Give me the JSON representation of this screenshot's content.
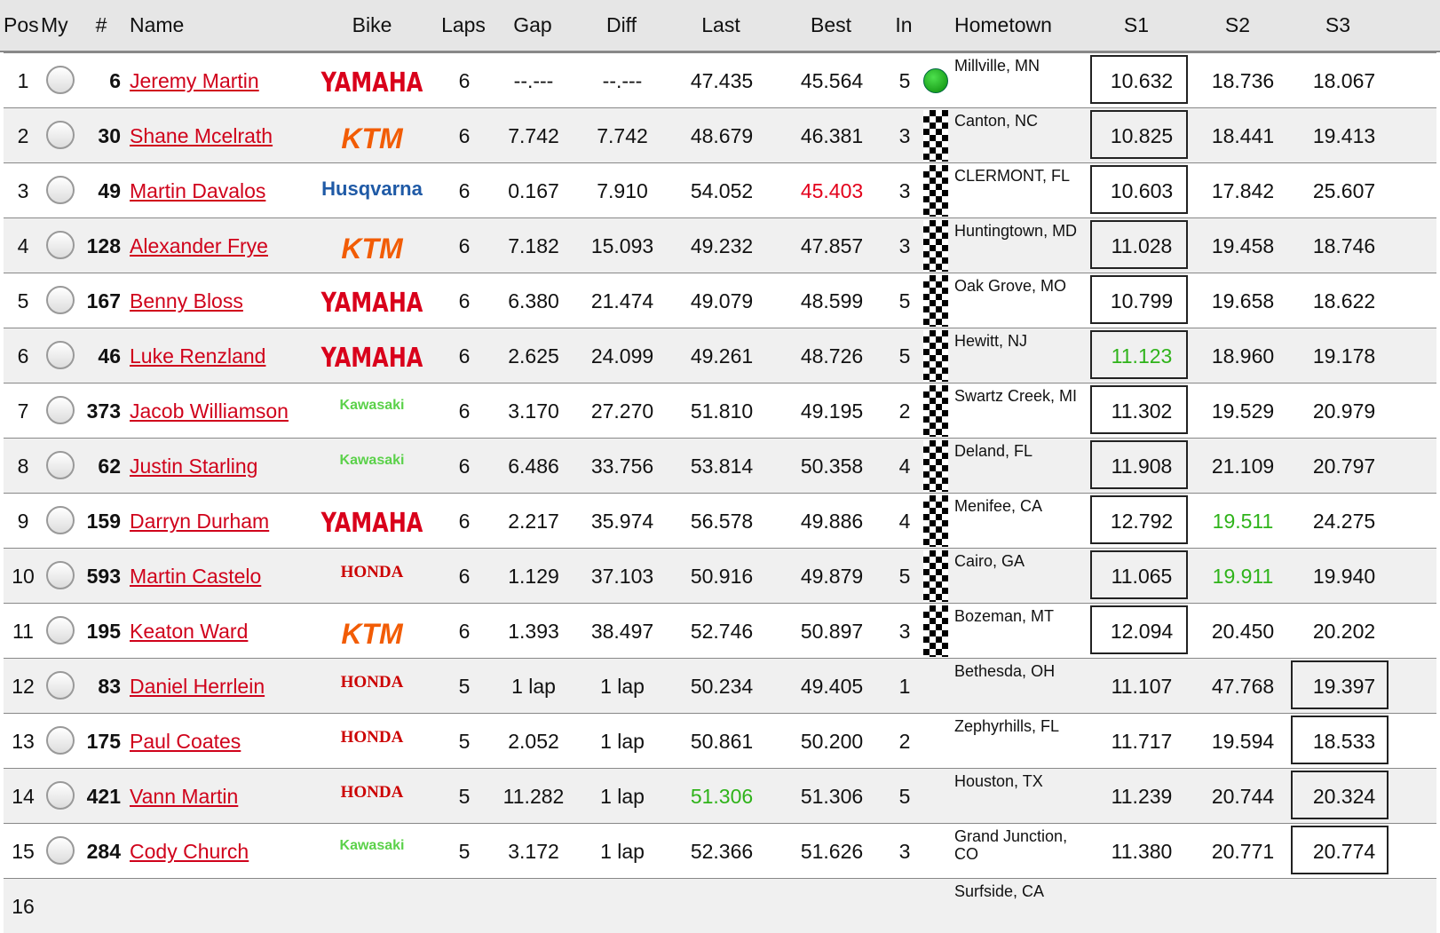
{
  "header": {
    "columns": [
      "Pos",
      "My",
      "#",
      "Name",
      "Bike",
      "Laps",
      "Gap",
      "Diff",
      "Last",
      "Best",
      "In",
      "Hometown",
      "S1",
      "S2",
      "S3"
    ]
  },
  "table": {
    "rows": [
      {
        "pos": "1",
        "num": "6",
        "name": "Jeremy Martin",
        "bike": "YAMAHA",
        "laps": "6",
        "gap": "--.---",
        "diff": "--.---",
        "last": "47.435",
        "best": "45.564",
        "in": "5",
        "hometown": "Millville, MN",
        "s1": "10.632",
        "s2": "18.736",
        "s3": "18.067"
      },
      {
        "pos": "2",
        "num": "30",
        "name": "Shane Mcelrath",
        "bike": "KTM",
        "laps": "6",
        "gap": "7.742",
        "diff": "7.742",
        "last": "48.679",
        "best": "46.381",
        "in": "3",
        "hometown": "Canton, NC",
        "s1": "10.825",
        "s2": "18.441",
        "s3": "19.413"
      },
      {
        "pos": "3",
        "num": "49",
        "name": "Martin Davalos",
        "bike": "Husqvarna",
        "laps": "6",
        "gap": "0.167",
        "diff": "7.910",
        "last": "54.052",
        "best": "45.403",
        "in": "3",
        "hometown": "CLERMONT, FL",
        "s1": "10.603",
        "s2": "17.842",
        "s3": "25.607"
      },
      {
        "pos": "4",
        "num": "128",
        "name": "Alexander Frye",
        "bike": "KTM",
        "laps": "6",
        "gap": "7.182",
        "diff": "15.093",
        "last": "49.232",
        "best": "47.857",
        "in": "3",
        "hometown": "Huntingtown, MD",
        "s1": "11.028",
        "s2": "19.458",
        "s3": "18.746"
      },
      {
        "pos": "5",
        "num": "167",
        "name": "Benny Bloss",
        "bike": "YAMAHA",
        "laps": "6",
        "gap": "6.380",
        "diff": "21.474",
        "last": "49.079",
        "best": "48.599",
        "in": "5",
        "hometown": "Oak Grove, MO",
        "s1": "10.799",
        "s2": "19.658",
        "s3": "18.622"
      },
      {
        "pos": "6",
        "num": "46",
        "name": "Luke Renzland",
        "bike": "YAMAHA",
        "laps": "6",
        "gap": "2.625",
        "diff": "24.099",
        "last": "49.261",
        "best": "48.726",
        "in": "5",
        "hometown": "Hewitt, NJ",
        "s1": "11.123",
        "s2": "18.960",
        "s3": "19.178"
      },
      {
        "pos": "7",
        "num": "373",
        "name": "Jacob Williamson",
        "bike": "Kawasaki",
        "laps": "6",
        "gap": "3.170",
        "diff": "27.270",
        "last": "51.810",
        "best": "49.195",
        "in": "2",
        "hometown": "Swartz Creek, MI",
        "s1": "11.302",
        "s2": "19.529",
        "s3": "20.979"
      },
      {
        "pos": "8",
        "num": "62",
        "name": "Justin Starling",
        "bike": "Kawasaki",
        "laps": "6",
        "gap": "6.486",
        "diff": "33.756",
        "last": "53.814",
        "best": "50.358",
        "in": "4",
        "hometown": "Deland, FL",
        "s1": "11.908",
        "s2": "21.109",
        "s3": "20.797"
      },
      {
        "pos": "9",
        "num": "159",
        "name": "Darryn Durham",
        "bike": "YAMAHA",
        "laps": "6",
        "gap": "2.217",
        "diff": "35.974",
        "last": "56.578",
        "best": "49.886",
        "in": "4",
        "hometown": "Menifee, CA",
        "s1": "12.792",
        "s2": "19.511",
        "s3": "24.275"
      },
      {
        "pos": "10",
        "num": "593",
        "name": "Martin Castelo",
        "bike": "HONDA",
        "laps": "6",
        "gap": "1.129",
        "diff": "37.103",
        "last": "50.916",
        "best": "49.879",
        "in": "5",
        "hometown": "Cairo, GA",
        "s1": "11.065",
        "s2": "19.911",
        "s3": "19.940"
      },
      {
        "pos": "11",
        "num": "195",
        "name": "Keaton Ward",
        "bike": "KTM",
        "laps": "6",
        "gap": "1.393",
        "diff": "38.497",
        "last": "52.746",
        "best": "50.897",
        "in": "3",
        "hometown": "Bozeman, MT",
        "s1": "12.094",
        "s2": "20.450",
        "s3": "20.202"
      },
      {
        "pos": "12",
        "num": "83",
        "name": "Daniel Herrlein",
        "bike": "HONDA",
        "laps": "5",
        "gap": "1 lap",
        "diff": "1 lap",
        "last": "50.234",
        "best": "49.405",
        "in": "1",
        "hometown": "Bethesda, OH",
        "s1": "11.107",
        "s2": "47.768",
        "s3": "19.397"
      },
      {
        "pos": "13",
        "num": "175",
        "name": "Paul Coates",
        "bike": "HONDA",
        "laps": "5",
        "gap": "2.052",
        "diff": "1 lap",
        "last": "50.861",
        "best": "50.200",
        "in": "2",
        "hometown": "Zephyrhills, FL",
        "s1": "11.717",
        "s2": "19.594",
        "s3": "18.533"
      },
      {
        "pos": "14",
        "num": "421",
        "name": "Vann Martin",
        "bike": "HONDA",
        "laps": "5",
        "gap": "11.282",
        "diff": "1 lap",
        "last": "51.306",
        "best": "51.306",
        "in": "5",
        "hometown": "Houston, TX",
        "s1": "11.239",
        "s2": "20.744",
        "s3": "20.324"
      },
      {
        "pos": "15",
        "num": "284",
        "name": "Cody Church",
        "bike": "Kawasaki",
        "laps": "5",
        "gap": "3.172",
        "diff": "1 lap",
        "last": "52.366",
        "best": "51.626",
        "in": "3",
        "hometown": "Grand Junction, CO",
        "s1": "11.380",
        "s2": "20.771",
        "s3": "20.774"
      },
      {
        "pos": "16",
        "hometown": "Surfside, CA"
      }
    ]
  }
}
